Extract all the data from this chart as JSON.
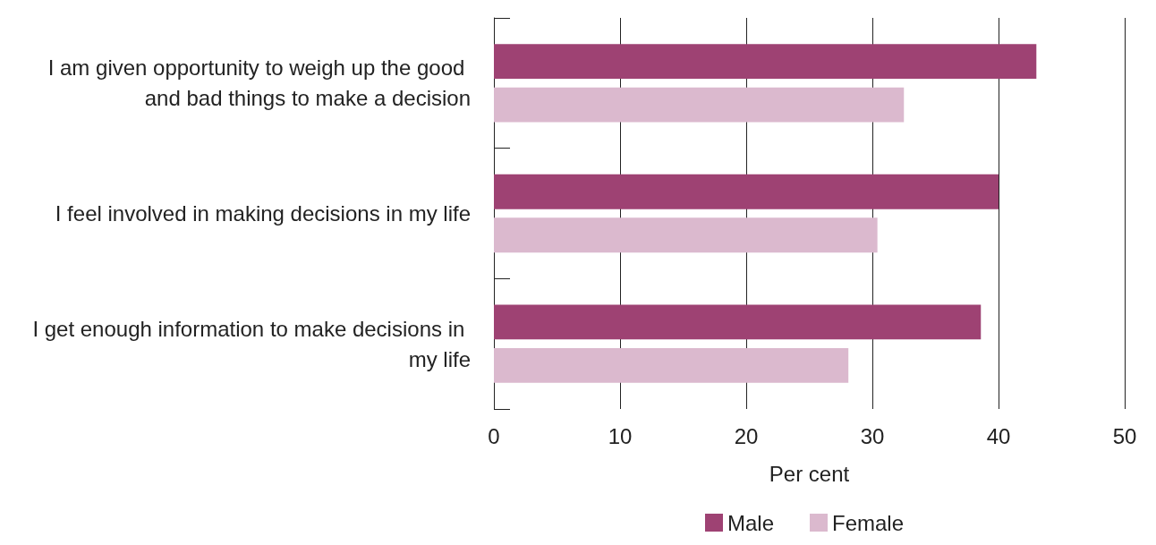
{
  "chart_data": {
    "type": "bar",
    "orientation": "horizontal",
    "xlabel": "Per cent",
    "categories": [
      "I am given opportunity to weigh up the good and bad things to make a decision",
      "I feel involved in making decisions in my life",
      "I get enough information to make decisions in my life"
    ],
    "series": [
      {
        "name": "Male",
        "color": "#9e4273",
        "values": [
          43,
          40,
          38.6
        ]
      },
      {
        "name": "Female",
        "color": "#dbb9ce",
        "values": [
          32.5,
          30.4,
          28.1
        ]
      }
    ],
    "xlim": [
      0,
      50
    ],
    "xticks": [
      0,
      10,
      20,
      30,
      40,
      50
    ],
    "grid": "x",
    "legend": "bottom"
  }
}
